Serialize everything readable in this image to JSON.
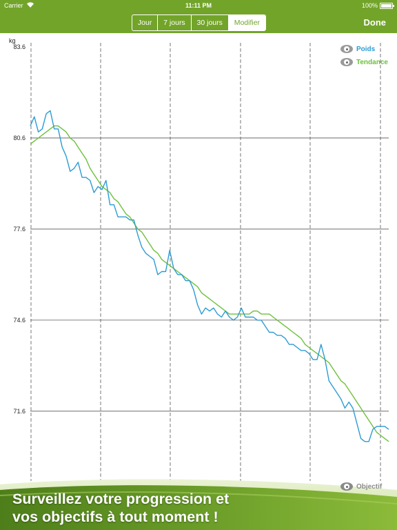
{
  "status_bar": {
    "carrier": "Carrier",
    "time": "11:11 PM",
    "battery": "100%"
  },
  "nav": {
    "segments": [
      "Jour",
      "7 jours",
      "30 jours",
      "Modifier"
    ],
    "selected_segment": "Modifier",
    "done": "Done"
  },
  "legend": {
    "weight": "Poids",
    "trend": "Tendance",
    "goal": "Objectif"
  },
  "tagline": [
    "Surveillez votre progression et",
    "vos objectifs à tout moment !"
  ],
  "colors": {
    "accent": "#72a42a",
    "weight_line": "#2b9bd2",
    "trend_line": "#6cc03c"
  },
  "chart_data": {
    "type": "line",
    "ylabel": "kg",
    "y_ticks": [
      "83.6",
      "80.6",
      "77.6",
      "74.6",
      "71.6"
    ],
    "ylim": [
      69.3,
      83.6
    ],
    "grid": true,
    "legend_position": "top-right",
    "series": [
      {
        "name": "Poids",
        "values": [
          81.0,
          81.3,
          80.8,
          80.9,
          81.4,
          81.5,
          80.9,
          80.9,
          80.3,
          80.0,
          79.5,
          79.6,
          79.8,
          79.3,
          79.3,
          79.2,
          78.8,
          79.0,
          78.9,
          79.2,
          78.4,
          78.4,
          78.0,
          78.0,
          78.0,
          77.9,
          77.9,
          77.4,
          77.0,
          76.8,
          76.7,
          76.6,
          76.1,
          76.2,
          76.2,
          76.9,
          76.3,
          76.1,
          76.1,
          75.9,
          75.9,
          75.6,
          75.1,
          74.8,
          75.0,
          74.9,
          75.0,
          74.8,
          74.7,
          74.9,
          74.7,
          74.6,
          74.7,
          75.0,
          74.7,
          74.7,
          74.7,
          74.6,
          74.6,
          74.4,
          74.2,
          74.2,
          74.1,
          74.1,
          74.0,
          73.8,
          73.8,
          73.7,
          73.6,
          73.6,
          73.5,
          73.3,
          73.3,
          73.8,
          73.3,
          72.6,
          72.4,
          72.2,
          72.0,
          71.7,
          71.9,
          71.7,
          71.2,
          70.7,
          70.6,
          70.6,
          71.0,
          71.1,
          71.1,
          71.1,
          71.0
        ]
      },
      {
        "name": "Tendance",
        "values": [
          80.4,
          80.5,
          80.6,
          80.7,
          80.8,
          80.9,
          81.0,
          81.0,
          80.9,
          80.8,
          80.6,
          80.5,
          80.3,
          80.1,
          79.9,
          79.6,
          79.4,
          79.2,
          79.0,
          78.9,
          78.8,
          78.6,
          78.5,
          78.3,
          78.1,
          78.0,
          77.8,
          77.6,
          77.5,
          77.3,
          77.1,
          76.9,
          76.8,
          76.6,
          76.5,
          76.4,
          76.3,
          76.2,
          76.1,
          76.0,
          75.9,
          75.8,
          75.7,
          75.5,
          75.4,
          75.3,
          75.2,
          75.1,
          75.0,
          74.9,
          74.8,
          74.8,
          74.8,
          74.8,
          74.8,
          74.8,
          74.9,
          74.9,
          74.8,
          74.8,
          74.8,
          74.7,
          74.6,
          74.5,
          74.4,
          74.3,
          74.2,
          74.1,
          74.0,
          73.8,
          73.7,
          73.6,
          73.5,
          73.4,
          73.3,
          73.2,
          73.0,
          72.8,
          72.6,
          72.5,
          72.3,
          72.1,
          71.9,
          71.7,
          71.5,
          71.3,
          71.1,
          70.9,
          70.8,
          70.7,
          70.6
        ]
      }
    ]
  }
}
